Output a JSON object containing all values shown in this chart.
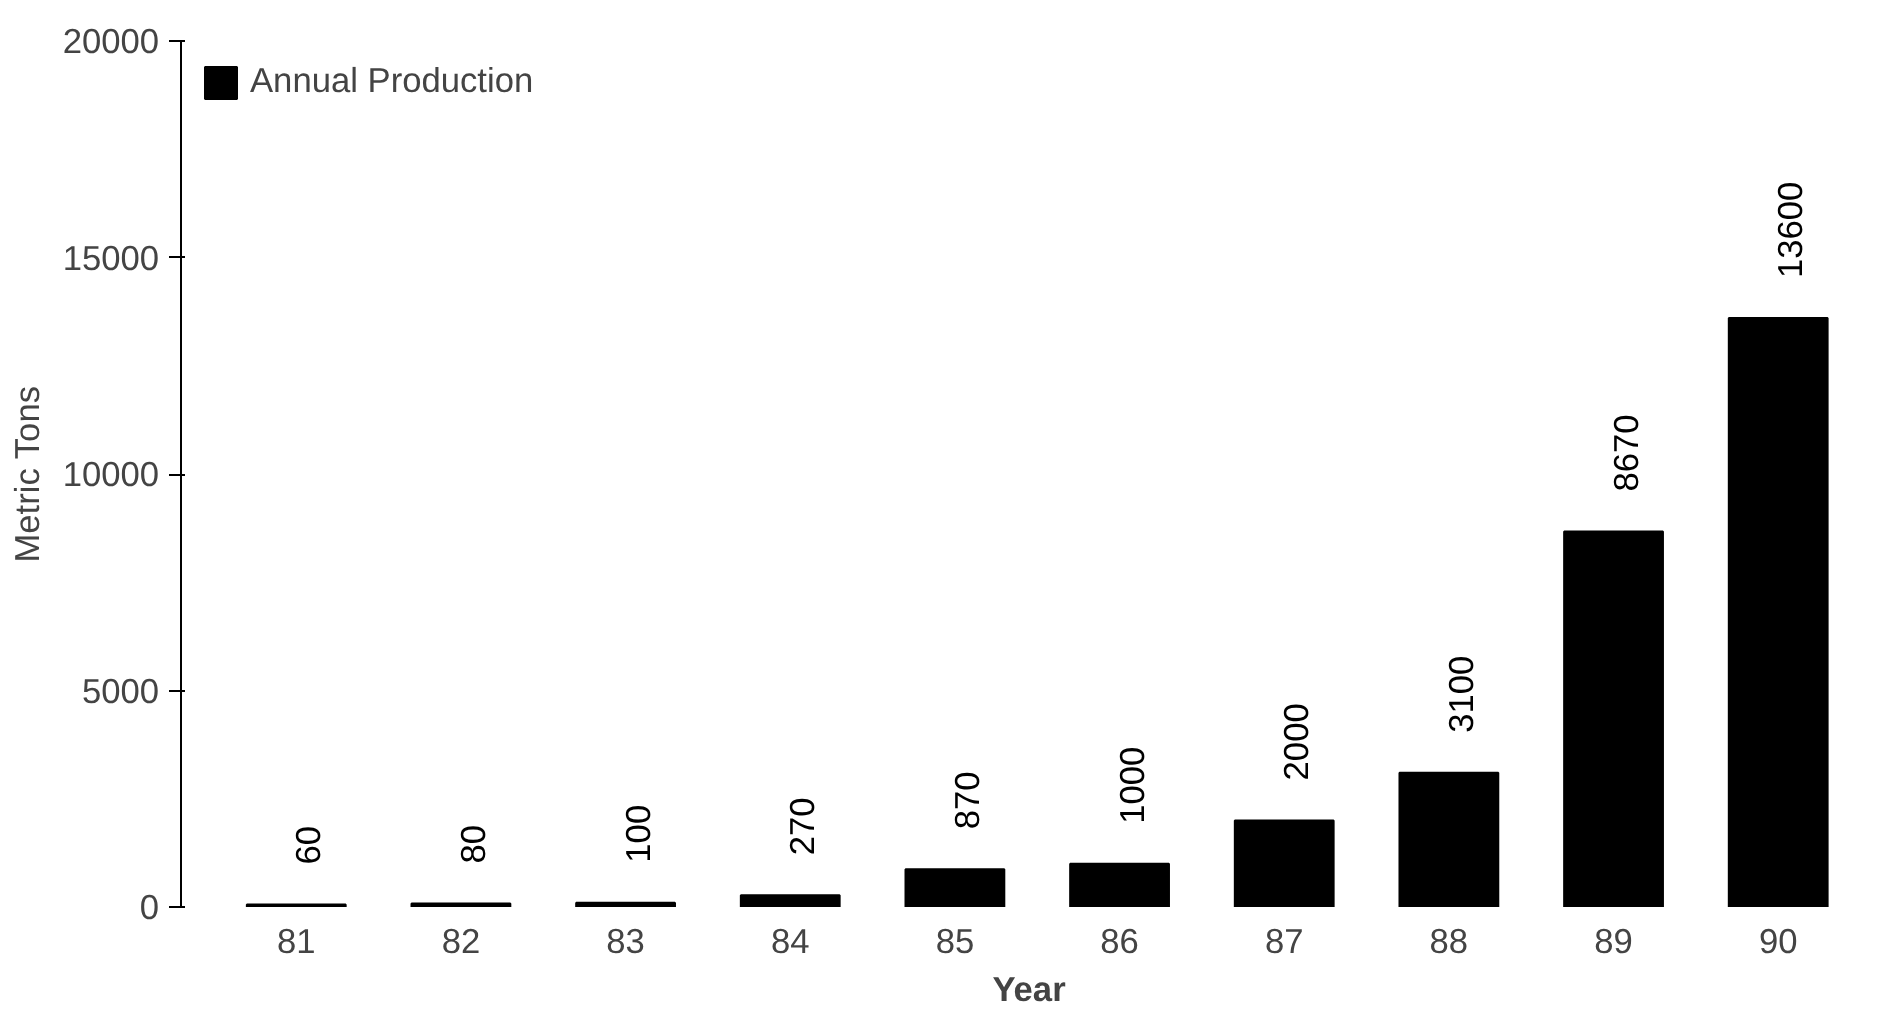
{
  "chart_data": {
    "type": "bar",
    "xlabel": "Year",
    "ylabel": "Metric Tons",
    "categories": [
      "81",
      "82",
      "83",
      "84",
      "85",
      "86",
      "87",
      "88",
      "89",
      "90"
    ],
    "series": [
      {
        "name": "Annual Production",
        "color": "#000000",
        "values": [
          60,
          80,
          100,
          270,
          870,
          1000,
          2000,
          3100,
          8670,
          13600
        ]
      }
    ],
    "ylim": [
      0,
      20000
    ],
    "yticks": [
      0,
      5000,
      10000,
      15000,
      20000
    ],
    "grid": false,
    "legend": "top left",
    "data_labels": true
  }
}
